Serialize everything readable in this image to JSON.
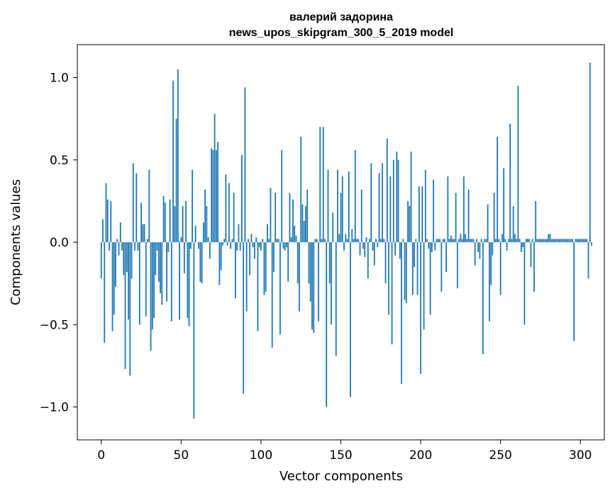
{
  "chart_data": {
    "type": "bar",
    "title": "валерий задорина",
    "subtitle": "news_upos_skipgram_300_5_2019 model",
    "xlabel": "Vector components",
    "ylabel": "Components values",
    "xlim": [
      -15,
      315
    ],
    "ylim": [
      -1.2,
      1.2
    ],
    "xticks": [
      0,
      50,
      100,
      150,
      200,
      250,
      300
    ],
    "yticks": [
      -1.0,
      -0.5,
      0.0,
      0.5,
      1.0
    ],
    "xtick_labels": [
      "0",
      "50",
      "100",
      "150",
      "200",
      "250",
      "300"
    ],
    "ytick_labels": [
      "−1.0",
      "−0.5",
      "0.0",
      "0.5",
      "1.0"
    ],
    "grid": false,
    "bar_color": "#1f77b4",
    "series": [
      {
        "x_start": 0,
        "values": [
          -0.22,
          0.14,
          -0.61,
          0.36,
          0.26,
          -0.05,
          0.25,
          -0.54,
          -0.44,
          -0.27,
          0.02,
          -0.08,
          0.12,
          -0.05,
          -0.2,
          -0.77,
          -0.18,
          -0.47,
          -0.81,
          -0.22,
          0.48,
          -0.05,
          0.42,
          -0.05,
          -0.5,
          0.24,
          0.11,
          0.11,
          -0.45,
          0.02,
          0.44,
          -0.66,
          -0.53,
          -0.46,
          -0.2,
          -0.05,
          -0.24,
          -0.31,
          -0.38,
          0.28,
          0.24,
          -0.36,
          -0.06,
          0.26,
          -0.48,
          0.98,
          0.22,
          0.75,
          1.05,
          -0.47,
          0.03,
          0.22,
          -0.19,
          0.25,
          -0.46,
          -0.51,
          -0.04,
          0.44,
          -1.07,
          0.1,
          0.0,
          -0.04,
          -0.24,
          -0.25,
          0.12,
          0.32,
          0.22,
          0.03,
          -0.1,
          0.57,
          0.56,
          0.78,
          0.56,
          0.61,
          -0.26,
          -0.17,
          -0.02,
          0.02,
          0.41,
          -0.02,
          0.36,
          -0.04,
          0.02,
          0.3,
          -0.34,
          -0.05,
          0.11,
          -0.05,
          0.53,
          -0.92,
          0.94,
          -0.42,
          0.02,
          -0.2,
          0.05,
          -0.03,
          -0.1,
          0.03,
          -0.54,
          -0.03,
          -0.05,
          0.02,
          -0.32,
          -0.3,
          0.11,
          0.02,
          0.33,
          -0.64,
          -0.18,
          0.3,
          0.02,
          0.02,
          -0.56,
          0.56,
          -0.04,
          -0.05,
          -0.03,
          -0.24,
          0.3,
          0.03,
          0.26,
          0.1,
          0.04,
          -0.25,
          -0.42,
          0.64,
          0.23,
          0.13,
          0.22,
          0.32,
          -0.25,
          -0.36,
          -0.53,
          -0.55,
          0.02,
          0.02,
          -0.48,
          0.7,
          0.02,
          0.7,
          0.02,
          -1.0,
          0.44,
          -0.25,
          -0.5,
          0.18,
          0.0,
          -0.69,
          0.44,
          0.05,
          0.3,
          0.4,
          -0.05,
          0.05,
          0.02,
          0.43,
          -0.94,
          0.08,
          0.02,
          0.56,
          0.02,
          0.02,
          -0.08,
          0.32,
          -0.04,
          -0.09,
          0.03,
          -0.22,
          0.02,
          0.48,
          -0.05,
          -0.14,
          0.02,
          -0.03,
          0.42,
          0.02,
          0.48,
          0.02,
          -0.25,
          0.63,
          -0.44,
          0.4,
          -0.62,
          0.5,
          -0.08,
          0.55,
          0.5,
          -0.1,
          -0.86,
          0.02,
          -0.35,
          -0.37,
          0.25,
          0.22,
          0.55,
          -0.32,
          -0.15,
          0.02,
          -0.32,
          0.34,
          -0.8,
          0.34,
          -0.53,
          0.44,
          0.02,
          -0.04,
          -0.44,
          -0.06,
          0.38,
          -0.05,
          0.02,
          0.02,
          0.02,
          -0.3,
          0.02,
          0.02,
          -0.18,
          0.4,
          0.02,
          0.04,
          0.02,
          0.02,
          0.3,
          -0.28,
          0.02,
          0.05,
          0.02,
          0.4,
          0.05,
          0.02,
          0.32,
          0.02,
          0.02,
          0.02,
          -0.14,
          0.02,
          -0.06,
          -0.1,
          0.02,
          -0.68,
          0.02,
          0.02,
          0.23,
          -0.48,
          -0.26,
          -0.08,
          0.3,
          0.02,
          0.64,
          0.02,
          -0.32,
          0.05,
          0.45,
          0.02,
          -0.05,
          0.02,
          0.72,
          0.02,
          0.22,
          0.05,
          0.02,
          0.95,
          0.02,
          -0.06,
          -0.03,
          -0.5,
          0.02,
          0.02,
          0.02,
          -0.15,
          0.02,
          -0.3,
          0.25,
          0.02,
          0.02,
          0.02,
          0.02,
          0.02,
          0.02,
          0.02,
          0.05,
          0.05,
          0.02,
          0.02,
          0.02,
          0.02,
          0.02,
          0.02,
          0.02,
          0.02,
          0.02,
          0.02,
          0.02,
          0.02,
          0.02,
          0.02,
          -0.6,
          0.02,
          0.02,
          0.02,
          0.02,
          0.02,
          0.02,
          0.02,
          0.02,
          -0.22,
          1.09,
          -0.02
        ]
      }
    ]
  }
}
